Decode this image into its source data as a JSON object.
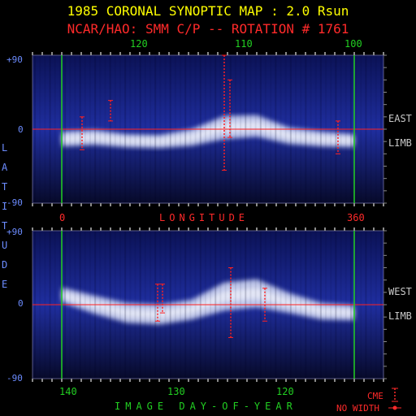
{
  "title": "1985 CORONAL SYNOPTIC MAP : 2.0 Rsun",
  "subtitle": "NCAR/HAO: SMM C/P -- ROTATION # 1761",
  "colors": {
    "title": "#ffff00",
    "subtitle": "#ff2a2a",
    "ticks_green": "#22d022",
    "ticks_blue": "#6c8cff",
    "equator_line": "#ff2020",
    "cme_marker": "#ff2020",
    "background": "#000000",
    "map_dark": "#0a0a3c",
    "map_bright": "#e6ecff"
  },
  "labels": {
    "latitude": "LATITUDE",
    "longitude": "LONGITUDE",
    "day_of_year": "IMAGE DAY-OF-YEAR",
    "east": "EAST",
    "west": "WEST",
    "limb_east": "LIMB",
    "limb_west": "LIMB",
    "legend_cme": "CME",
    "legend_no_width": "NO WIDTH"
  },
  "chart_data": [
    {
      "type": "heatmap",
      "panel": "east-limb",
      "x_top_ticks": [
        "120",
        "110",
        "100"
      ],
      "x_bottom_ticks": [
        "0",
        "LONGITUDE",
        "360"
      ],
      "y_ticks": [
        "+90",
        "0",
        "-90"
      ],
      "ylim": [
        -90,
        90
      ],
      "longitude_markers": [
        0,
        360
      ],
      "equator": 0,
      "streamer_band": [
        {
          "lon": 0,
          "lat": -12,
          "width": 18
        },
        {
          "lon": 40,
          "lat": -10,
          "width": 18
        },
        {
          "lon": 80,
          "lat": -14,
          "width": 16
        },
        {
          "lon": 120,
          "lat": -15,
          "width": 16
        },
        {
          "lon": 160,
          "lat": -10,
          "width": 20
        },
        {
          "lon": 200,
          "lat": 2,
          "width": 28
        },
        {
          "lon": 240,
          "lat": 4,
          "width": 26
        },
        {
          "lon": 280,
          "lat": -8,
          "width": 20
        },
        {
          "lon": 320,
          "lat": -12,
          "width": 18
        },
        {
          "lon": 360,
          "lat": -14,
          "width": 16
        }
      ],
      "cme_events": [
        {
          "lon": 25,
          "lat_min": -25,
          "lat_max": 15
        },
        {
          "lon": 60,
          "lat_min": 10,
          "lat_max": 35
        },
        {
          "lon": 200,
          "lat_min": -50,
          "lat_max": 90
        },
        {
          "lon": 207,
          "lat_min": -10,
          "lat_max": 60
        },
        {
          "lon": 340,
          "lat_min": -30,
          "lat_max": 10
        }
      ]
    },
    {
      "type": "heatmap",
      "panel": "west-limb",
      "x_bottom_ticks": [
        "140",
        "130",
        "120"
      ],
      "y_ticks": [
        "+90",
        "0",
        "-90"
      ],
      "ylim": [
        -90,
        90
      ],
      "longitude_markers": [
        0,
        360
      ],
      "equator": 0,
      "streamer_band": [
        {
          "lon": 0,
          "lat": 12,
          "width": 18
        },
        {
          "lon": 40,
          "lat": 0,
          "width": 22
        },
        {
          "lon": 80,
          "lat": -10,
          "width": 24
        },
        {
          "lon": 120,
          "lat": -12,
          "width": 24
        },
        {
          "lon": 160,
          "lat": -6,
          "width": 24
        },
        {
          "lon": 200,
          "lat": 10,
          "width": 34
        },
        {
          "lon": 240,
          "lat": 14,
          "width": 34
        },
        {
          "lon": 280,
          "lat": 2,
          "width": 24
        },
        {
          "lon": 320,
          "lat": -8,
          "width": 20
        },
        {
          "lon": 360,
          "lat": -10,
          "width": 18
        }
      ],
      "cme_events": [
        {
          "lon": 118,
          "lat_min": -20,
          "lat_max": 25
        },
        {
          "lon": 124,
          "lat_min": -10,
          "lat_max": 25
        },
        {
          "lon": 208,
          "lat_min": -40,
          "lat_max": 45
        },
        {
          "lon": 250,
          "lat_min": -20,
          "lat_max": 20
        }
      ]
    }
  ]
}
